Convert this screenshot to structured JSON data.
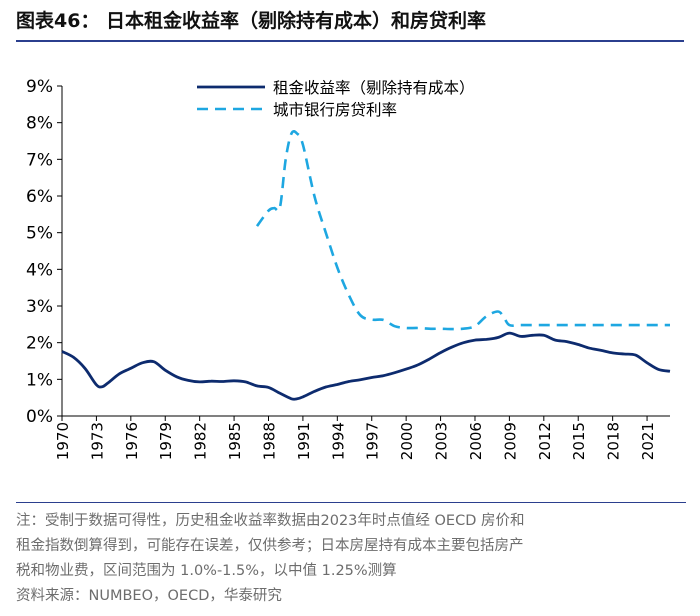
{
  "figure": {
    "title": "图表46：  日本租金收益率（剔除持有成本）和房贷利率"
  },
  "chart_data": {
    "type": "line",
    "title": "",
    "xlabel": "",
    "ylabel": "",
    "xlim": [
      1970,
      2023
    ],
    "ylim": [
      0,
      9
    ],
    "y_ticks": [
      "0%",
      "1%",
      "2%",
      "3%",
      "4%",
      "5%",
      "6%",
      "7%",
      "8%",
      "9%"
    ],
    "x_ticks": [
      "1970",
      "1973",
      "1976",
      "1979",
      "1982",
      "1985",
      "1988",
      "1991",
      "1994",
      "1997",
      "2000",
      "2003",
      "2006",
      "2009",
      "2012",
      "2015",
      "2018",
      "2021"
    ],
    "legend_position": "top-center",
    "series": [
      {
        "name": "租金收益率（剔除持有成本）",
        "style": "solid",
        "color": "#0d2b6e",
        "points": [
          [
            1970,
            1.76
          ],
          [
            1971,
            1.6
          ],
          [
            1972,
            1.3
          ],
          [
            1973,
            0.85
          ],
          [
            1973.5,
            0.8
          ],
          [
            1974,
            0.9
          ],
          [
            1975,
            1.15
          ],
          [
            1976,
            1.3
          ],
          [
            1977,
            1.45
          ],
          [
            1978,
            1.48
          ],
          [
            1979,
            1.25
          ],
          [
            1980,
            1.07
          ],
          [
            1981,
            0.97
          ],
          [
            1982,
            0.93
          ],
          [
            1983,
            0.95
          ],
          [
            1984,
            0.94
          ],
          [
            1985,
            0.96
          ],
          [
            1986,
            0.93
          ],
          [
            1987,
            0.82
          ],
          [
            1988,
            0.78
          ],
          [
            1989,
            0.62
          ],
          [
            1990,
            0.47
          ],
          [
            1990.5,
            0.47
          ],
          [
            1991,
            0.52
          ],
          [
            1992,
            0.67
          ],
          [
            1993,
            0.79
          ],
          [
            1994,
            0.86
          ],
          [
            1995,
            0.94
          ],
          [
            1996,
            0.99
          ],
          [
            1997,
            1.05
          ],
          [
            1998,
            1.1
          ],
          [
            1999,
            1.18
          ],
          [
            2000,
            1.28
          ],
          [
            2001,
            1.39
          ],
          [
            2002,
            1.55
          ],
          [
            2003,
            1.73
          ],
          [
            2004,
            1.88
          ],
          [
            2005,
            2.0
          ],
          [
            2006,
            2.07
          ],
          [
            2007,
            2.09
          ],
          [
            2008,
            2.14
          ],
          [
            2009,
            2.26
          ],
          [
            2010,
            2.17
          ],
          [
            2011,
            2.2
          ],
          [
            2012,
            2.2
          ],
          [
            2013,
            2.07
          ],
          [
            2014,
            2.03
          ],
          [
            2015,
            1.95
          ],
          [
            2016,
            1.85
          ],
          [
            2017,
            1.79
          ],
          [
            2018,
            1.72
          ],
          [
            2019,
            1.69
          ],
          [
            2020,
            1.66
          ],
          [
            2021,
            1.45
          ],
          [
            2022,
            1.27
          ],
          [
            2023,
            1.22
          ]
        ]
      },
      {
        "name": "城市银行房贷利率",
        "style": "dashed",
        "color": "#1ea7e1",
        "points": [
          [
            1987,
            5.18
          ],
          [
            1988,
            5.6
          ],
          [
            1988.5,
            5.67
          ],
          [
            1989,
            5.7
          ],
          [
            1989.5,
            7.0
          ],
          [
            1990,
            7.7
          ],
          [
            1990.5,
            7.7
          ],
          [
            1991,
            7.4
          ],
          [
            1992,
            6.0
          ],
          [
            1993,
            5.0
          ],
          [
            1994,
            4.05
          ],
          [
            1995,
            3.3
          ],
          [
            1996,
            2.75
          ],
          [
            1997,
            2.63
          ],
          [
            1998,
            2.62
          ],
          [
            1999,
            2.45
          ],
          [
            2000,
            2.4
          ],
          [
            2001,
            2.4
          ],
          [
            2002,
            2.38
          ],
          [
            2003,
            2.38
          ],
          [
            2004,
            2.37
          ],
          [
            2005,
            2.38
          ],
          [
            2006,
            2.45
          ],
          [
            2007,
            2.72
          ],
          [
            2008,
            2.85
          ],
          [
            2008.5,
            2.7
          ],
          [
            2009,
            2.48
          ],
          [
            2010,
            2.48
          ],
          [
            2011,
            2.48
          ],
          [
            2012,
            2.48
          ],
          [
            2013,
            2.48
          ],
          [
            2014,
            2.48
          ],
          [
            2015,
            2.48
          ],
          [
            2016,
            2.48
          ],
          [
            2017,
            2.48
          ],
          [
            2018,
            2.48
          ],
          [
            2019,
            2.48
          ],
          [
            2020,
            2.48
          ],
          [
            2021,
            2.48
          ],
          [
            2022,
            2.48
          ],
          [
            2023,
            2.48
          ]
        ]
      }
    ]
  },
  "notes": {
    "line1": "注：受制于数据可得性，历史租金收益率数据由2023年时点值经 OECD 房价和",
    "line2": "租金指数倒算得到，可能存在误差，仅供参考；日本房屋持有成本主要包括房产",
    "line3": "税和物业费，区间范围为 1.0%-1.5%，以中值 1.25%测算",
    "source": "资料来源：NUMBEO，OECD，华泰研究"
  }
}
